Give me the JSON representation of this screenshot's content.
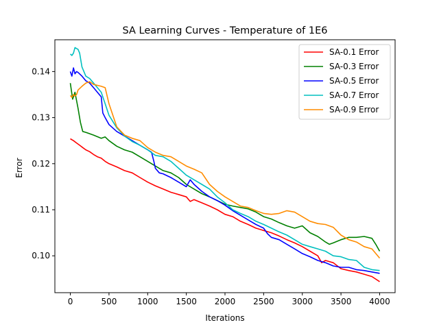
{
  "chart_data": {
    "type": "line",
    "title": "SA Learning Curves - Temperature of 1E6",
    "xlabel": "Iterations",
    "ylabel": "Error",
    "xlim": [
      -200,
      4200
    ],
    "ylim": [
      0.092,
      0.1469
    ],
    "xticks": [
      0,
      500,
      1000,
      1500,
      2000,
      2500,
      3000,
      3500,
      4000
    ],
    "yticks": [
      0.1,
      0.11,
      0.12,
      0.13,
      0.14
    ],
    "ytick_labels": [
      "0.10",
      "0.11",
      "0.12",
      "0.13",
      "0.14"
    ],
    "grid": false,
    "legend_position": "top-right",
    "series": [
      {
        "name": "SA-0.1 Error",
        "color": "#ff0000",
        "x": [
          0,
          40,
          80,
          120,
          160,
          200,
          250,
          300,
          350,
          400,
          450,
          500,
          600,
          700,
          800,
          900,
          1000,
          1100,
          1200,
          1300,
          1400,
          1500,
          1550,
          1600,
          1700,
          1800,
          1900,
          2000,
          2100,
          2200,
          2300,
          2400,
          2500,
          2600,
          2700,
          2800,
          2900,
          3000,
          3100,
          3200,
          3250,
          3300,
          3400,
          3500,
          3600,
          3700,
          3800,
          3900,
          4000
        ],
        "y": [
          0.1254,
          0.125,
          0.1245,
          0.124,
          0.1235,
          0.123,
          0.1226,
          0.122,
          0.1215,
          0.1212,
          0.1205,
          0.12,
          0.1193,
          0.1185,
          0.118,
          0.117,
          0.116,
          0.1152,
          0.1145,
          0.1138,
          0.1133,
          0.1128,
          0.1118,
          0.1122,
          0.1115,
          0.1108,
          0.11,
          0.109,
          0.1085,
          0.1075,
          0.1068,
          0.106,
          0.1055,
          0.105,
          0.1043,
          0.1035,
          0.1028,
          0.102,
          0.101,
          0.1,
          0.0985,
          0.099,
          0.0985,
          0.0972,
          0.0968,
          0.0965,
          0.096,
          0.0955,
          0.0944
        ]
      },
      {
        "name": "SA-0.3 Error",
        "color": "#008000",
        "x": [
          0,
          30,
          60,
          100,
          130,
          160,
          200,
          300,
          400,
          450,
          500,
          600,
          700,
          800,
          900,
          1000,
          1100,
          1200,
          1300,
          1400,
          1500,
          1600,
          1700,
          1800,
          1900,
          2000,
          2100,
          2200,
          2300,
          2400,
          2500,
          2600,
          2700,
          2800,
          2900,
          3000,
          3100,
          3200,
          3300,
          3350,
          3400,
          3500,
          3600,
          3700,
          3800,
          3900,
          3950,
          4000
        ],
        "y": [
          0.1375,
          0.134,
          0.1355,
          0.132,
          0.129,
          0.127,
          0.1268,
          0.1262,
          0.1255,
          0.1258,
          0.125,
          0.1238,
          0.123,
          0.1225,
          0.1215,
          0.1205,
          0.1195,
          0.1185,
          0.118,
          0.117,
          0.1155,
          0.1145,
          0.1135,
          0.1128,
          0.112,
          0.1112,
          0.1108,
          0.1105,
          0.1102,
          0.1095,
          0.1085,
          0.108,
          0.1072,
          0.1065,
          0.106,
          0.1065,
          0.105,
          0.1042,
          0.103,
          0.1025,
          0.1028,
          0.1035,
          0.104,
          0.104,
          0.1042,
          0.1038,
          0.1025,
          0.101
        ]
      },
      {
        "name": "SA-0.5 Error",
        "color": "#0000ff",
        "x": [
          0,
          20,
          40,
          60,
          80,
          100,
          150,
          200,
          250,
          300,
          350,
          400,
          420,
          450,
          500,
          600,
          700,
          800,
          900,
          1000,
          1050,
          1080,
          1100,
          1150,
          1200,
          1300,
          1400,
          1500,
          1550,
          1600,
          1700,
          1800,
          1900,
          2000,
          2100,
          2200,
          2300,
          2400,
          2500,
          2550,
          2600,
          2700,
          2800,
          2900,
          3000,
          3100,
          3200,
          3300,
          3400,
          3500,
          3600,
          3700,
          3800,
          3900,
          4000
        ],
        "y": [
          0.14,
          0.139,
          0.1408,
          0.1395,
          0.14,
          0.1398,
          0.139,
          0.138,
          0.1375,
          0.1365,
          0.1355,
          0.1345,
          0.131,
          0.13,
          0.1285,
          0.127,
          0.126,
          0.125,
          0.124,
          0.123,
          0.1225,
          0.1205,
          0.119,
          0.118,
          0.1178,
          0.117,
          0.116,
          0.115,
          0.1165,
          0.1155,
          0.114,
          0.1128,
          0.112,
          0.111,
          0.1098,
          0.1088,
          0.1078,
          0.1068,
          0.106,
          0.1048,
          0.104,
          0.1035,
          0.1025,
          0.1015,
          0.1005,
          0.0998,
          0.099,
          0.0985,
          0.0978,
          0.0975,
          0.0975,
          0.097,
          0.0968,
          0.0965,
          0.0962
        ]
      },
      {
        "name": "SA-0.7 Error",
        "color": "#00bfbf",
        "x": [
          0,
          20,
          40,
          60,
          80,
          100,
          120,
          150,
          200,
          250,
          300,
          350,
          400,
          450,
          500,
          600,
          700,
          800,
          900,
          1000,
          1100,
          1200,
          1300,
          1400,
          1500,
          1600,
          1700,
          1800,
          1900,
          2000,
          2100,
          2200,
          2300,
          2400,
          2500,
          2600,
          2700,
          2800,
          2900,
          3000,
          3100,
          3200,
          3300,
          3400,
          3500,
          3600,
          3700,
          3800,
          3900,
          4000
        ],
        "y": [
          0.1438,
          0.1435,
          0.144,
          0.1452,
          0.145,
          0.1448,
          0.144,
          0.141,
          0.139,
          0.1385,
          0.1375,
          0.1365,
          0.1355,
          0.133,
          0.1305,
          0.1278,
          0.126,
          0.1248,
          0.124,
          0.123,
          0.1218,
          0.1215,
          0.1205,
          0.119,
          0.1175,
          0.1165,
          0.1155,
          0.1145,
          0.1128,
          0.1115,
          0.11,
          0.1092,
          0.1085,
          0.1075,
          0.1068,
          0.106,
          0.1052,
          0.1045,
          0.1035,
          0.1025,
          0.102,
          0.1015,
          0.101,
          0.1,
          0.0998,
          0.0992,
          0.099,
          0.0975,
          0.097,
          0.0968
        ]
      },
      {
        "name": "SA-0.9 Error",
        "color": "#ff8c00",
        "x": [
          0,
          20,
          40,
          60,
          80,
          100,
          150,
          200,
          250,
          300,
          350,
          400,
          450,
          500,
          600,
          700,
          800,
          900,
          1000,
          1100,
          1200,
          1300,
          1400,
          1500,
          1600,
          1700,
          1800,
          1900,
          2000,
          2100,
          2200,
          2300,
          2400,
          2500,
          2600,
          2700,
          2800,
          2900,
          3000,
          3100,
          3200,
          3300,
          3400,
          3500,
          3600,
          3700,
          3800,
          3900,
          4000
        ],
        "y": [
          0.1348,
          0.1344,
          0.135,
          0.1347,
          0.135,
          0.136,
          0.1368,
          0.1375,
          0.1378,
          0.1372,
          0.137,
          0.1368,
          0.1365,
          0.133,
          0.128,
          0.1262,
          0.1255,
          0.125,
          0.1235,
          0.1225,
          0.1218,
          0.1215,
          0.1205,
          0.1195,
          0.1188,
          0.118,
          0.1155,
          0.114,
          0.1128,
          0.1118,
          0.1108,
          0.1105,
          0.1098,
          0.1092,
          0.109,
          0.1092,
          0.1098,
          0.1095,
          0.1085,
          0.1075,
          0.107,
          0.1068,
          0.1062,
          0.1045,
          0.1035,
          0.103,
          0.102,
          0.1015,
          0.0995
        ]
      }
    ]
  }
}
